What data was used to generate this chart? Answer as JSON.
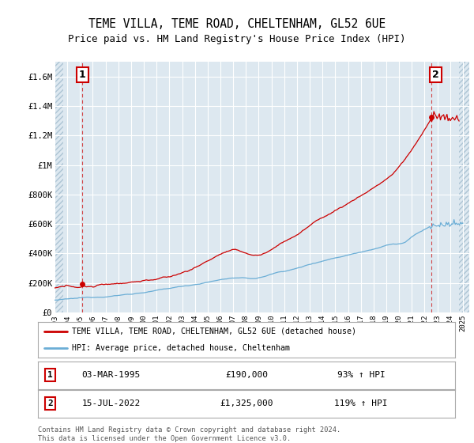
{
  "title": "TEME VILLA, TEME ROAD, CHELTENHAM, GL52 6UE",
  "subtitle": "Price paid vs. HM Land Registry's House Price Index (HPI)",
  "ylim": [
    0,
    1700000
  ],
  "yticks": [
    0,
    200000,
    400000,
    600000,
    800000,
    1000000,
    1200000,
    1400000,
    1600000
  ],
  "ytick_labels": [
    "£0",
    "£200K",
    "£400K",
    "£600K",
    "£800K",
    "£1M",
    "£1.2M",
    "£1.4M",
    "£1.6M"
  ],
  "xlim_start": 1993.0,
  "xlim_end": 2025.5,
  "xticks": [
    1993,
    1994,
    1995,
    1996,
    1997,
    1998,
    1999,
    2000,
    2001,
    2002,
    2003,
    2004,
    2005,
    2006,
    2007,
    2008,
    2009,
    2010,
    2011,
    2012,
    2013,
    2014,
    2015,
    2016,
    2017,
    2018,
    2019,
    2020,
    2021,
    2022,
    2023,
    2024,
    2025
  ],
  "sale1_x": 1995.17,
  "sale1_y": 190000,
  "sale1_label": "1",
  "sale2_x": 2022.54,
  "sale2_y": 1325000,
  "sale2_label": "2",
  "hpi_color": "#6baed6",
  "price_color": "#cc0000",
  "background_color": "#dde8f0",
  "grid_color": "#ffffff",
  "hatch_color": "#c8d8e4",
  "legend_label_price": "TEME VILLA, TEME ROAD, CHELTENHAM, GL52 6UE (detached house)",
  "legend_label_hpi": "HPI: Average price, detached house, Cheltenham",
  "table_row1": [
    "1",
    "03-MAR-1995",
    "£190,000",
    "93% ↑ HPI"
  ],
  "table_row2": [
    "2",
    "15-JUL-2022",
    "£1,325,000",
    "119% ↑ HPI"
  ],
  "footer": "Contains HM Land Registry data © Crown copyright and database right 2024.\nThis data is licensed under the Open Government Licence v3.0.",
  "title_fontsize": 10.5,
  "subtitle_fontsize": 9
}
